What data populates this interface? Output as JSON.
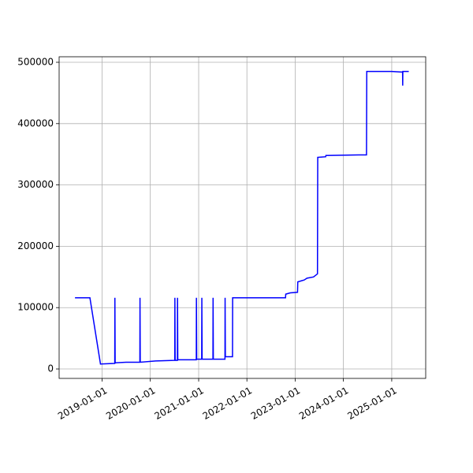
{
  "chart_data": {
    "type": "line",
    "grid": true,
    "x": [
      "2018-06-10",
      "2018-10-01",
      "2018-12-20",
      "2019-04-05",
      "2019-04-07",
      "2019-04-08",
      "2019-04-10",
      "2019-07-01",
      "2019-10-14",
      "2019-10-15",
      "2019-10-17",
      "2020-02-10",
      "2020-07-01",
      "2020-07-04",
      "2020-07-05",
      "2020-07-07",
      "2020-07-24",
      "2020-07-25",
      "2020-07-27",
      "2020-10-01",
      "2020-12-14",
      "2020-12-15",
      "2020-12-17",
      "2021-01-24",
      "2021-01-25",
      "2021-01-27",
      "2021-04-19",
      "2021-04-20",
      "2021-04-22",
      "2021-07-19",
      "2021-07-20",
      "2021-07-22",
      "2021-09-14",
      "2021-09-15",
      "2022-10-20",
      "2022-10-22",
      "2022-11-25",
      "2023-01-19",
      "2023-01-21",
      "2023-03-10",
      "2023-04-01",
      "2023-05-20",
      "2023-06-19",
      "2023-06-21",
      "2023-08-20",
      "2023-08-22",
      "2024-04-25",
      "2024-06-24",
      "2024-06-26",
      "2025-01-01",
      "2025-03-24",
      "2025-03-25",
      "2025-03-26",
      "2025-05-10"
    ],
    "series": [
      {
        "color": "#0000ff",
        "values": [
          116000,
          116000,
          8000,
          9000,
          9000,
          116000,
          10000,
          11000,
          11000,
          116000,
          11000,
          13000,
          14000,
          14000,
          116000,
          14000,
          14000,
          116000,
          15000,
          15000,
          15000,
          116000,
          16000,
          16000,
          116000,
          16000,
          16000,
          116000,
          16000,
          16000,
          116000,
          20000,
          20000,
          116000,
          116000,
          122000,
          124000,
          125000,
          142000,
          145000,
          148000,
          150000,
          155000,
          345000,
          346000,
          348000,
          349000,
          349000,
          485000,
          485000,
          484000,
          462000,
          485000,
          485000
        ]
      }
    ],
    "xlim": [
      "2018-02-10",
      "2025-09-15"
    ],
    "xticks": [
      "2019-01-01",
      "2020-01-01",
      "2021-01-01",
      "2022-01-01",
      "2023-01-01",
      "2024-01-01",
      "2025-01-01"
    ],
    "ylim": [
      -15400,
      509000
    ],
    "yticks": [
      0,
      100000,
      200000,
      300000,
      400000,
      500000
    ]
  }
}
